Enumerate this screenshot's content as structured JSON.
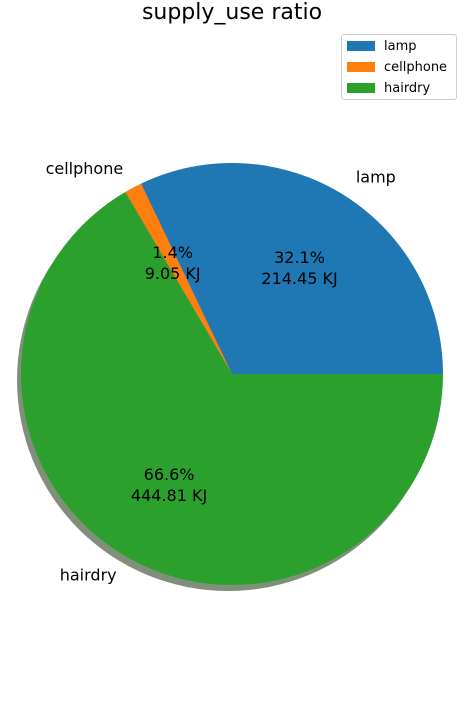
{
  "chart_data": {
    "type": "pie",
    "title": "supply_use ratio",
    "unit": "KJ",
    "categories": [
      "lamp",
      "cellphone",
      "hairdry"
    ],
    "values": [
      214.45,
      9.05,
      444.81
    ],
    "percent_labels": [
      "32.1%",
      "1.4%",
      "66.6%"
    ],
    "value_labels": [
      "214.45 KJ",
      "9.05 KJ",
      "444.81 KJ"
    ],
    "colors": [
      "#1f77b4",
      "#ff7f0e",
      "#2ca02c"
    ],
    "start_angle_deg": 0,
    "direction": "counterclockwise",
    "shadow": true,
    "legend": {
      "position": "top-right",
      "entries": [
        "lamp",
        "cellphone",
        "hairdry"
      ]
    }
  }
}
